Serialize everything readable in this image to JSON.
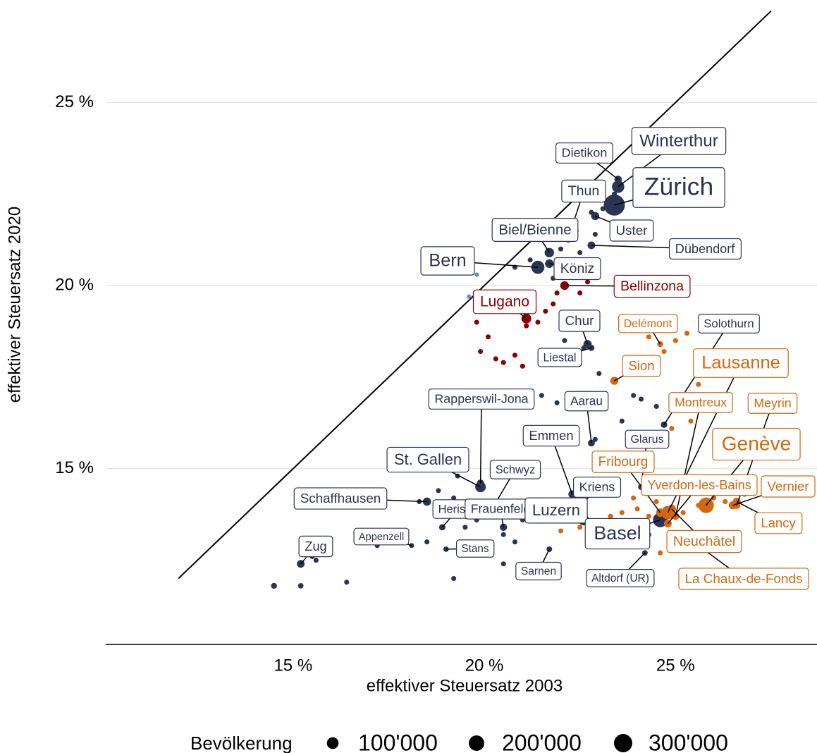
{
  "chart_data": {
    "type": "scatter",
    "x_label": "effektiver Steuersatz 2003",
    "y_label": "effektiver Steuersatz 2020",
    "xlim": [
      10.1,
      28.7
    ],
    "ylim": [
      10.2,
      27.8
    ],
    "xticks": [
      {
        "value": 15,
        "label": "15 %"
      },
      {
        "value": 20,
        "label": "20 %"
      },
      {
        "value": 25,
        "label": "25 %"
      }
    ],
    "yticks": [
      {
        "value": 15,
        "label": "15 %"
      },
      {
        "value": 20,
        "label": "20 %"
      },
      {
        "value": 25,
        "label": "25 %"
      }
    ],
    "grid": true,
    "reference_line": {
      "x": [
        12,
        27.5
      ],
      "y": [
        12,
        27.5
      ],
      "color": "#000000"
    },
    "legend": {
      "title": "Bevölkerung",
      "position": "bottom",
      "color": "#000000",
      "sizes": [
        {
          "value": 100000,
          "label": "100'000"
        },
        {
          "value": 200000,
          "label": "200'000"
        },
        {
          "value": 300000,
          "label": "300'000"
        }
      ]
    },
    "series": [
      {
        "color": "#2b3553",
        "labels": [
          "Zürich",
          "Winterthur",
          "Dietikon",
          "Thun",
          "Biel/Bienne",
          "Uster",
          "Dübendorf",
          "Bern",
          "Köniz",
          "Chur",
          "Solothurn",
          "Liestal",
          "Rapperswil-Jona",
          "Aarau",
          "Emmen",
          "Glarus",
          "St. Gallen",
          "Schwyz",
          "Schaffhausen",
          "Herisau",
          "Frauenfeld",
          "Kriens",
          "Luzern",
          "Basel",
          "Appenzell",
          "Zug",
          "Stans",
          "Sarnen",
          "Altdorf (UR)",
          null,
          null,
          null,
          null,
          null,
          null,
          null,
          null,
          null,
          null,
          null,
          null,
          null,
          null,
          null,
          null,
          null,
          null,
          null,
          null,
          null,
          null,
          null,
          null,
          null,
          null,
          null,
          null,
          null,
          null,
          null,
          null,
          null,
          null,
          null,
          null,
          null,
          null,
          null,
          null,
          null,
          null,
          null,
          null,
          null,
          null,
          null,
          null,
          null,
          null
        ],
        "x": [
          23.4,
          23.5,
          23.5,
          22.2,
          21.7,
          22.9,
          22.8,
          21.4,
          21.7,
          22.7,
          24.7,
          22.8,
          19.9,
          22.8,
          22.3,
          24.1,
          19.9,
          20.2,
          18.5,
          18.9,
          20.5,
          22.3,
          22.6,
          24.6,
          18.1,
          15.2,
          19.0,
          21.7,
          24.2,
          14.5,
          15.2,
          16.4,
          15.5,
          15.8,
          17.2,
          17.6,
          18.5,
          18.3,
          18.8,
          19.3,
          19.2,
          19.5,
          19.8,
          20.5,
          20.8,
          21.0,
          21.3,
          21.7,
          22.0,
          22.6,
          22.9,
          23.2,
          23.6,
          24.1,
          24.5,
          23.9,
          23.0,
          22.6,
          22.1,
          21.9,
          21.5,
          22.3,
          22.7,
          21.2,
          20.8,
          22.4,
          22.9,
          23.1,
          23.4,
          22.0,
          21.8,
          22.5,
          20.5,
          24.3,
          23.6,
          19.2,
          15.6,
          22.8,
          22.3
        ],
        "y": [
          22.2,
          22.7,
          22.9,
          21.3,
          20.9,
          21.9,
          21.1,
          20.5,
          20.6,
          18.4,
          16.2,
          18.3,
          14.6,
          15.7,
          14.3,
          14.5,
          14.5,
          13.9,
          14.1,
          13.4,
          13.4,
          13.7,
          13.6,
          13.6,
          12.9,
          12.4,
          12.8,
          12.8,
          12.7,
          11.8,
          11.8,
          11.9,
          12.6,
          12.7,
          12.9,
          13.0,
          13.0,
          14.1,
          14.4,
          14.8,
          14.2,
          13.4,
          13.6,
          13.2,
          13.0,
          13.6,
          13.8,
          14.0,
          13.9,
          14.6,
          15.8,
          15.2,
          16.3,
          16.9,
          16.7,
          17.0,
          17.6,
          18.3,
          18.5,
          16.8,
          17.0,
          19.2,
          20.6,
          20.7,
          20.5,
          21.5,
          21.4,
          22.1,
          22.5,
          21.0,
          20.2,
          20.9,
          12.4,
          13.2,
          12.9,
          12.0,
          12.5,
          22.0,
          20.3
        ],
        "size": [
          421000,
          114000,
          27000,
          44000,
          55000,
          35000,
          29000,
          134000,
          42000,
          37000,
          17000,
          14000,
          27000,
          21000,
          31000,
          12500,
          76000,
          15000,
          36000,
          15500,
          25000,
          27000,
          82000,
          172000,
          5800,
          30000,
          8300,
          10000,
          9300,
          12000,
          9000,
          6000,
          6000,
          6000,
          6000,
          6000,
          6000,
          6000,
          6000,
          6000,
          6000,
          6000,
          6000,
          6000,
          6000,
          6000,
          6000,
          6000,
          6000,
          6000,
          6000,
          6000,
          6000,
          6000,
          6000,
          6000,
          6000,
          6000,
          6000,
          6000,
          6000,
          6000,
          6000,
          6000,
          6000,
          6000,
          6000,
          6000,
          6000,
          6000,
          6000,
          6000,
          6000,
          6000,
          6000,
          6000,
          6000,
          6000,
          6000
        ]
      },
      {
        "color": "#8b0000",
        "labels": [
          "Lugano",
          "Bellinzona",
          null,
          null,
          null,
          null,
          null,
          null,
          null,
          null,
          null,
          null,
          null,
          null,
          null,
          null
        ],
        "x": [
          21.1,
          22.1,
          19.9,
          20.1,
          20.3,
          20.8,
          21.1,
          21.4,
          21.8,
          21.9,
          22.5,
          22.7,
          21.0,
          20.5,
          21.6,
          19.8
        ],
        "y": [
          19.1,
          20.0,
          18.2,
          18.6,
          18.0,
          18.1,
          18.9,
          19.0,
          19.5,
          19.8,
          19.8,
          20.1,
          17.8,
          17.9,
          19.3,
          19.0
        ],
        "size": [
          63000,
          43000,
          6000,
          6000,
          6000,
          6000,
          6000,
          6000,
          6000,
          6000,
          6000,
          6000,
          6000,
          6000,
          6000,
          6000
        ]
      },
      {
        "color": "#d4680c",
        "labels": [
          "Delémont",
          "Sion",
          "Lausanne",
          "Montreux",
          "Meyrin",
          "Genève",
          "Fribourg",
          "Yverdon-les-Bains",
          "Vernier",
          "Lancy",
          "Neuchâtel",
          "La Chaux-de-Fonds",
          null,
          null,
          null,
          null,
          null,
          null,
          null,
          null,
          null,
          null,
          null,
          null,
          null,
          null,
          null,
          null,
          null,
          null,
          null,
          null,
          null,
          null,
          null
        ],
        "x": [
          24.6,
          23.4,
          24.8,
          25.0,
          26.6,
          25.8,
          24.6,
          24.8,
          26.5,
          26.6,
          24.9,
          25.6,
          24.3,
          24.7,
          25.0,
          25.3,
          23.0,
          23.3,
          23.6,
          24.0,
          24.3,
          25.2,
          25.6,
          26.0,
          26.3,
          26.8,
          22.0,
          22.5,
          24.6,
          23.9,
          24.5,
          25.4,
          25.1,
          25.6,
          24.9
        ],
        "y": [
          18.4,
          17.4,
          13.8,
          13.7,
          14.0,
          14.0,
          13.8,
          13.5,
          14.0,
          14.1,
          13.9,
          12.9,
          18.6,
          18.2,
          18.5,
          18.7,
          13.5,
          13.7,
          13.8,
          13.9,
          13.7,
          13.8,
          14.0,
          14.2,
          14.1,
          14.3,
          13.3,
          13.4,
          12.7,
          14.2,
          14.1,
          16.3,
          16.8,
          17.3,
          16.1
        ],
        "size": [
          12500,
          34000,
          139000,
          26000,
          26000,
          203000,
          38000,
          30000,
          35000,
          33000,
          44000,
          37000,
          6000,
          6000,
          6000,
          6000,
          6000,
          6000,
          6000,
          6000,
          6000,
          6000,
          6000,
          6000,
          6000,
          6000,
          6000,
          6000,
          6000,
          6000,
          6000,
          6000,
          6000,
          6000,
          6000
        ]
      },
      {
        "color": "#5b8fd6",
        "labels": [
          null,
          null
        ],
        "x": [
          19.8,
          19.6
        ],
        "y": [
          20.3,
          19.7
        ],
        "size": [
          3000,
          3000
        ]
      }
    ]
  }
}
